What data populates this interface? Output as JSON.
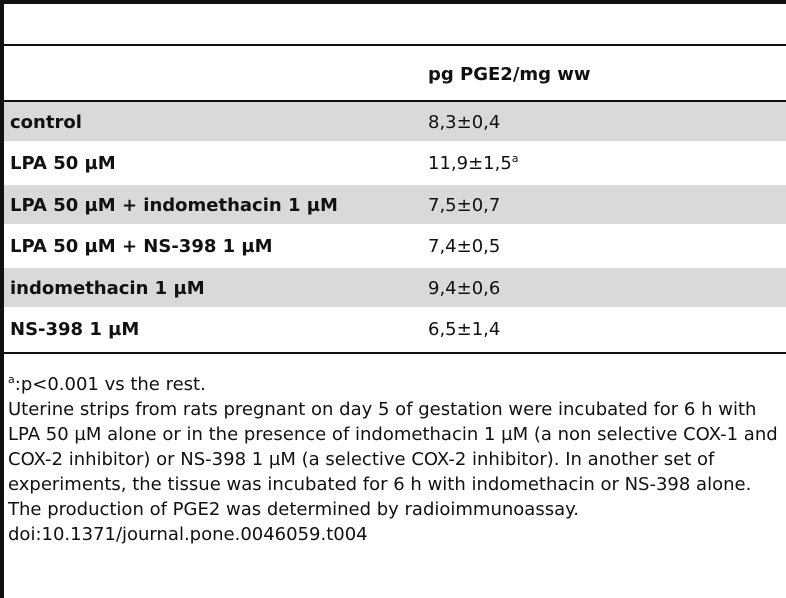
{
  "table": {
    "column_header": "pg PGE2/mg ww",
    "rows": [
      {
        "label": "control",
        "value": "8,3±0,4",
        "sup": ""
      },
      {
        "label": "LPA 50 µM",
        "value": "11,9±1,5",
        "sup": "a"
      },
      {
        "label": "LPA 50 µM + indomethacin 1 µM",
        "value": "7,5±0,7",
        "sup": ""
      },
      {
        "label": "LPA 50 µM + NS-398 1 µM",
        "value": "7,4±0,5",
        "sup": ""
      },
      {
        "label": "indomethacin 1 µM",
        "value": "9,4±0,6",
        "sup": ""
      },
      {
        "label": "NS-398 1 µM",
        "value": "6,5±1,4",
        "sup": ""
      }
    ]
  },
  "footnotes": {
    "significance_marker": "a",
    "significance_text": ":p<0.001 vs the rest.",
    "description": "Uterine strips from rats pregnant on day 5 of gestation were incubated for 6 h with LPA 50 µM alone or in the presence of indomethacin 1 µM (a non selective COX-1 and COX-2 inhibitor) or NS-398 1 µM (a selective COX-2 inhibitor). In another set of experiments, the tissue was incubated for 6 h with indomethacin or NS-398 alone. The production of PGE2 was determined by radioimmunoassay.",
    "doi": "doi:10.1371/journal.pone.0046059.t004"
  }
}
